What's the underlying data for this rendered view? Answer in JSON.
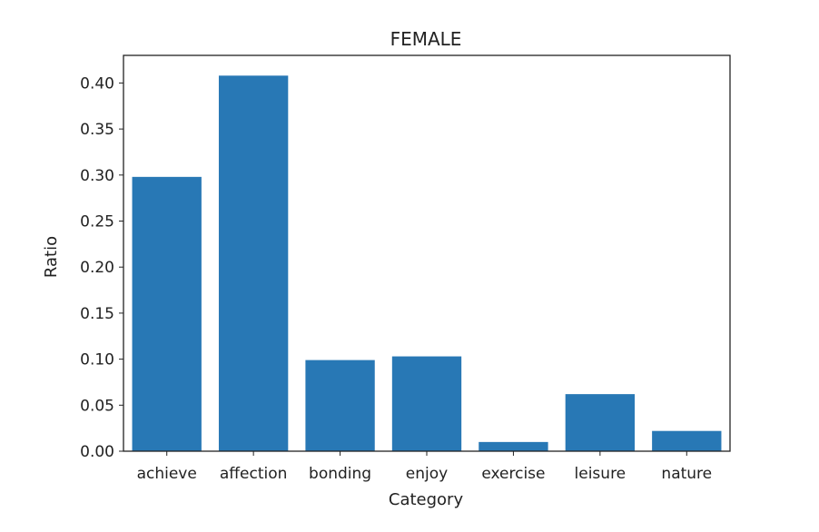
{
  "chart_data": {
    "type": "bar",
    "title": "FEMALE",
    "xlabel": "Category",
    "ylabel": "Ratio",
    "categories": [
      "achieve",
      "affection",
      "bonding",
      "enjoy",
      "exercise",
      "leisure",
      "nature"
    ],
    "values": [
      0.298,
      0.408,
      0.099,
      0.103,
      0.01,
      0.062,
      0.022
    ],
    "ylim": [
      0,
      0.43
    ],
    "yticks": [
      0.0,
      0.05,
      0.1,
      0.15,
      0.2,
      0.25,
      0.3,
      0.35,
      0.4
    ],
    "ytick_labels": [
      "0.00",
      "0.05",
      "0.10",
      "0.15",
      "0.20",
      "0.25",
      "0.30",
      "0.35",
      "0.40"
    ],
    "bar_color": "#2878b5",
    "grid": false,
    "legend": "none"
  }
}
